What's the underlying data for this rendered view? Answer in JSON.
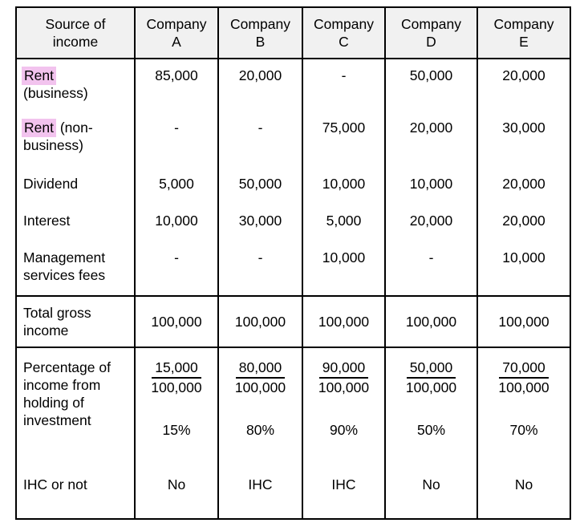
{
  "colors": {
    "border": "#000000",
    "header_background": "#f1f1f1",
    "highlight": "#f2c3ee",
    "text": "#000000",
    "page_background": "#ffffff"
  },
  "table": {
    "header": {
      "cols": [
        "Source of\nincome",
        "Company\nA",
        "Company\nB",
        "Company\nC",
        "Company\nD",
        "Company\nE"
      ]
    },
    "income_rows": [
      {
        "label_hl": "Rent",
        "label_rest": "\n(business)",
        "values": [
          "85,000",
          "20,000",
          "-",
          "50,000",
          "20,000"
        ]
      },
      {
        "label_hl": "Rent",
        "label_rest": " (non-business)",
        "values": [
          "-",
          "-",
          "75,000",
          "20,000",
          "30,000"
        ]
      },
      {
        "label_hl": "",
        "label_rest": "Dividend",
        "values": [
          "5,000",
          "50,000",
          "10,000",
          "10,000",
          "20,000"
        ]
      },
      {
        "label_hl": "",
        "label_rest": "Interest",
        "values": [
          "10,000",
          "30,000",
          "5,000",
          "20,000",
          "20,000"
        ]
      },
      {
        "label_hl": "",
        "label_rest": "Management\nservices fees",
        "values": [
          "-",
          "-",
          "10,000",
          "-",
          "10,000"
        ]
      }
    ],
    "total_row": {
      "label": "Total gross\nincome",
      "values": [
        "100,000",
        "100,000",
        "100,000",
        "100,000",
        "100,000"
      ]
    },
    "percentage_row": {
      "label": "Percentage of\nincome from\nholding of\ninvestment",
      "numerators": [
        "15,000",
        "80,000",
        "90,000",
        "50,000",
        "70,000"
      ],
      "denominators": [
        "100,000",
        "100,000",
        "100,000",
        "100,000",
        "100,000"
      ],
      "percents": [
        "15%",
        "80%",
        "90%",
        "50%",
        "70%"
      ]
    },
    "ihc_row": {
      "label": "IHC or not",
      "values": [
        "No",
        "IHC",
        "IHC",
        "No",
        "No"
      ]
    }
  }
}
